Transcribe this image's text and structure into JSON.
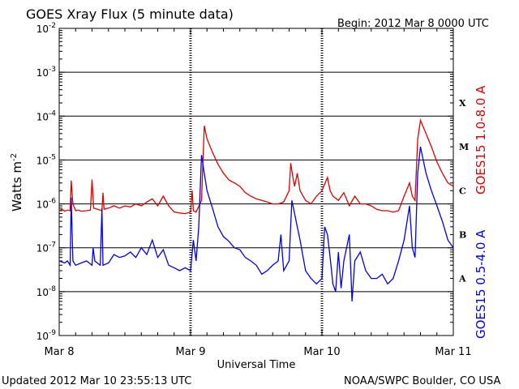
{
  "chart_data": {
    "type": "line",
    "title": "GOES Xray Flux (5 minute data)",
    "begin_label": "Begin:  2012 Mar 8 0000 UTC",
    "xlabel": "Universal Time",
    "ylabel": "Watts m",
    "ylabel_superscript": "-2",
    "y_scale": "log",
    "ylim": [
      1e-09,
      0.01
    ],
    "xlim_hours": [
      0,
      72
    ],
    "y_tick_labels": [
      {
        "base": "10",
        "exp": "-2",
        "value": 0.01
      },
      {
        "base": "10",
        "exp": "-3",
        "value": 0.001
      },
      {
        "base": "10",
        "exp": "-4",
        "value": 0.0001
      },
      {
        "base": "10",
        "exp": "-5",
        "value": 1e-05
      },
      {
        "base": "10",
        "exp": "-6",
        "value": 1e-06
      },
      {
        "base": "10",
        "exp": "-7",
        "value": 1e-07
      },
      {
        "base": "10",
        "exp": "-8",
        "value": 1e-08
      },
      {
        "base": "10",
        "exp": "-9",
        "value": 1e-09
      }
    ],
    "x_tick_labels": [
      {
        "label": "Mar 8",
        "hour": 0
      },
      {
        "label": "Mar 9",
        "hour": 24
      },
      {
        "label": "Mar 10",
        "hour": 48
      },
      {
        "label": "Mar 11",
        "hour": 72
      }
    ],
    "flare_classes": [
      {
        "label": "X",
        "value": 0.0002
      },
      {
        "label": "M",
        "value": 2e-05
      },
      {
        "label": "C",
        "value": 2e-06
      },
      {
        "label": "B",
        "value": 2e-07
      },
      {
        "label": "A",
        "value": 2e-08
      }
    ],
    "grid": "horizontal lines at each decade 1e-8 to 1e-3",
    "series": [
      {
        "name": "GOES15 1.0-8.0 A",
        "color": "#e00000",
        "points": [
          [
            0.0,
            7e-07
          ],
          [
            0.5,
            7.5e-07
          ],
          [
            1.0,
            6.8e-07
          ],
          [
            1.5,
            7.2e-07
          ],
          [
            2.0,
            7e-07
          ],
          [
            2.2,
            3.4e-06
          ],
          [
            2.5,
            1e-06
          ],
          [
            3.0,
            7e-07
          ],
          [
            3.5,
            7.2e-07
          ],
          [
            4.0,
            6.8e-07
          ],
          [
            5.0,
            7e-07
          ],
          [
            5.7,
            7.2e-07
          ],
          [
            6.0,
            3.6e-06
          ],
          [
            6.3,
            8e-07
          ],
          [
            7.0,
            7.5e-07
          ],
          [
            7.8,
            7e-07
          ],
          [
            8.0,
            1.8e-06
          ],
          [
            8.2,
            7.5e-07
          ],
          [
            9.0,
            8e-07
          ],
          [
            10.0,
            9e-07
          ],
          [
            11.0,
            8e-07
          ],
          [
            12.0,
            9e-07
          ],
          [
            13.0,
            8.5e-07
          ],
          [
            14.0,
            1e-06
          ],
          [
            15.0,
            9e-07
          ],
          [
            16.0,
            1.1e-06
          ],
          [
            17.0,
            1.3e-06
          ],
          [
            18.0,
            9e-07
          ],
          [
            19.0,
            1.5e-06
          ],
          [
            20.0,
            9e-07
          ],
          [
            21.0,
            6.5e-07
          ],
          [
            22.0,
            6.2e-07
          ],
          [
            23.0,
            6e-07
          ],
          [
            24.0,
            6.5e-07
          ],
          [
            24.3,
            2e-06
          ],
          [
            24.5,
            7e-07
          ],
          [
            25.0,
            6.5e-07
          ],
          [
            26.0,
            1.2e-06
          ],
          [
            26.5,
            6e-05
          ],
          [
            27.0,
            3e-05
          ],
          [
            28.0,
            1.5e-05
          ],
          [
            29.0,
            8e-06
          ],
          [
            30.0,
            5e-06
          ],
          [
            31.0,
            3.5e-06
          ],
          [
            32.0,
            3e-06
          ],
          [
            33.0,
            2.5e-06
          ],
          [
            34.0,
            1.8e-06
          ],
          [
            35.0,
            1.5e-06
          ],
          [
            36.0,
            1.3e-06
          ],
          [
            37.0,
            1.2e-06
          ],
          [
            38.0,
            1.1e-06
          ],
          [
            39.0,
            1e-06
          ],
          [
            40.0,
            1e-06
          ],
          [
            41.0,
            1.1e-06
          ],
          [
            42.0,
            2e-06
          ],
          [
            42.3,
            8.5e-06
          ],
          [
            42.7,
            4e-06
          ],
          [
            43.0,
            2.5e-06
          ],
          [
            43.5,
            5e-06
          ],
          [
            44.0,
            2e-06
          ],
          [
            45.0,
            1.2e-06
          ],
          [
            46.0,
            1e-06
          ],
          [
            47.0,
            1.5e-06
          ],
          [
            48.0,
            2e-06
          ],
          [
            49.0,
            4e-06
          ],
          [
            49.5,
            2e-06
          ],
          [
            50.0,
            1.5e-06
          ],
          [
            51.0,
            1.2e-06
          ],
          [
            52.0,
            1.8e-06
          ],
          [
            53.0,
            9e-07
          ],
          [
            54.0,
            1.5e-06
          ],
          [
            55.0,
            1e-06
          ],
          [
            56.0,
            1e-06
          ],
          [
            57.0,
            9e-07
          ],
          [
            58.0,
            7.5e-07
          ],
          [
            59.0,
            7e-07
          ],
          [
            60.0,
            7e-07
          ],
          [
            61.0,
            6.5e-07
          ],
          [
            62.0,
            7e-07
          ],
          [
            63.0,
            1.5e-06
          ],
          [
            64.0,
            3e-06
          ],
          [
            64.5,
            1.5e-06
          ],
          [
            65.0,
            1.2e-06
          ],
          [
            65.5,
            3e-05
          ],
          [
            66.0,
            8e-05
          ],
          [
            67.0,
            4e-05
          ],
          [
            68.0,
            2e-05
          ],
          [
            69.0,
            9e-06
          ],
          [
            70.0,
            5e-06
          ],
          [
            71.0,
            3e-06
          ],
          [
            72.0,
            2.5e-06
          ]
        ]
      },
      {
        "name": "GOES15 0.5-4.0 A",
        "color": "#0000ee",
        "points": [
          [
            0.0,
            5e-08
          ],
          [
            1.0,
            4.5e-08
          ],
          [
            1.5,
            5e-08
          ],
          [
            2.0,
            4e-08
          ],
          [
            2.2,
            1.4e-06
          ],
          [
            2.5,
            5e-08
          ],
          [
            3.0,
            4e-08
          ],
          [
            4.0,
            4.5e-08
          ],
          [
            5.0,
            5e-08
          ],
          [
            6.0,
            4e-08
          ],
          [
            6.2,
            1e-07
          ],
          [
            6.5,
            5e-08
          ],
          [
            7.5,
            4e-08
          ],
          [
            7.8,
            8e-07
          ],
          [
            8.0,
            4e-08
          ],
          [
            9.0,
            4.5e-08
          ],
          [
            10.0,
            7e-08
          ],
          [
            11.0,
            6e-08
          ],
          [
            12.0,
            6.5e-08
          ],
          [
            13.0,
            8e-08
          ],
          [
            14.0,
            6e-08
          ],
          [
            15.0,
            1e-07
          ],
          [
            16.0,
            7e-08
          ],
          [
            17.0,
            1.5e-07
          ],
          [
            18.0,
            6e-08
          ],
          [
            19.0,
            9e-08
          ],
          [
            20.0,
            4e-08
          ],
          [
            21.0,
            3.5e-08
          ],
          [
            22.0,
            3e-08
          ],
          [
            23.0,
            3.5e-08
          ],
          [
            24.0,
            3e-08
          ],
          [
            24.5,
            1.5e-07
          ],
          [
            25.0,
            5e-08
          ],
          [
            25.5,
            3e-07
          ],
          [
            26.0,
            1.3e-05
          ],
          [
            26.5,
            5e-06
          ],
          [
            27.0,
            2e-06
          ],
          [
            28.0,
            8e-07
          ],
          [
            29.0,
            3e-07
          ],
          [
            30.0,
            1.8e-07
          ],
          [
            31.0,
            1.4e-07
          ],
          [
            32.0,
            1e-07
          ],
          [
            33.0,
            9e-08
          ],
          [
            34.0,
            6e-08
          ],
          [
            35.0,
            5e-08
          ],
          [
            36.0,
            4e-08
          ],
          [
            37.0,
            2.5e-08
          ],
          [
            38.0,
            3e-08
          ],
          [
            39.0,
            4e-08
          ],
          [
            40.0,
            5e-08
          ],
          [
            40.5,
            2e-07
          ],
          [
            41.0,
            3e-08
          ],
          [
            42.0,
            5e-08
          ],
          [
            42.5,
            1.2e-06
          ],
          [
            43.0,
            6e-07
          ],
          [
            43.5,
            3e-07
          ],
          [
            44.0,
            1.5e-07
          ],
          [
            45.0,
            3e-08
          ],
          [
            46.0,
            2e-08
          ],
          [
            47.0,
            1.5e-08
          ],
          [
            48.0,
            2e-08
          ],
          [
            48.5,
            3e-07
          ],
          [
            49.0,
            2e-07
          ],
          [
            49.5,
            6e-08
          ],
          [
            50.0,
            1.5e-08
          ],
          [
            50.5,
            1e-08
          ],
          [
            51.0,
            8e-08
          ],
          [
            51.5,
            1.2e-08
          ],
          [
            52.0,
            5e-08
          ],
          [
            53.0,
            2e-07
          ],
          [
            53.5,
            6e-09
          ],
          [
            54.0,
            5e-08
          ],
          [
            55.0,
            8e-08
          ],
          [
            56.0,
            3e-08
          ],
          [
            57.0,
            2e-08
          ],
          [
            58.0,
            2e-08
          ],
          [
            59.0,
            2.5e-08
          ],
          [
            60.0,
            1.5e-08
          ],
          [
            61.0,
            2e-08
          ],
          [
            62.0,
            5e-08
          ],
          [
            63.0,
            1.5e-07
          ],
          [
            64.0,
            9e-07
          ],
          [
            64.5,
            1e-07
          ],
          [
            65.0,
            6e-08
          ],
          [
            65.5,
            5e-06
          ],
          [
            66.0,
            2e-05
          ],
          [
            67.0,
            5e-06
          ],
          [
            68.0,
            2e-06
          ],
          [
            69.0,
            9e-07
          ],
          [
            70.0,
            4e-07
          ],
          [
            71.0,
            1.5e-07
          ],
          [
            72.0,
            1e-07
          ]
        ]
      }
    ]
  },
  "footer": {
    "updated": "Updated 2012 Mar 10 23:55:13 UTC",
    "credit": "NOAA/SWPC Boulder, CO USA"
  }
}
